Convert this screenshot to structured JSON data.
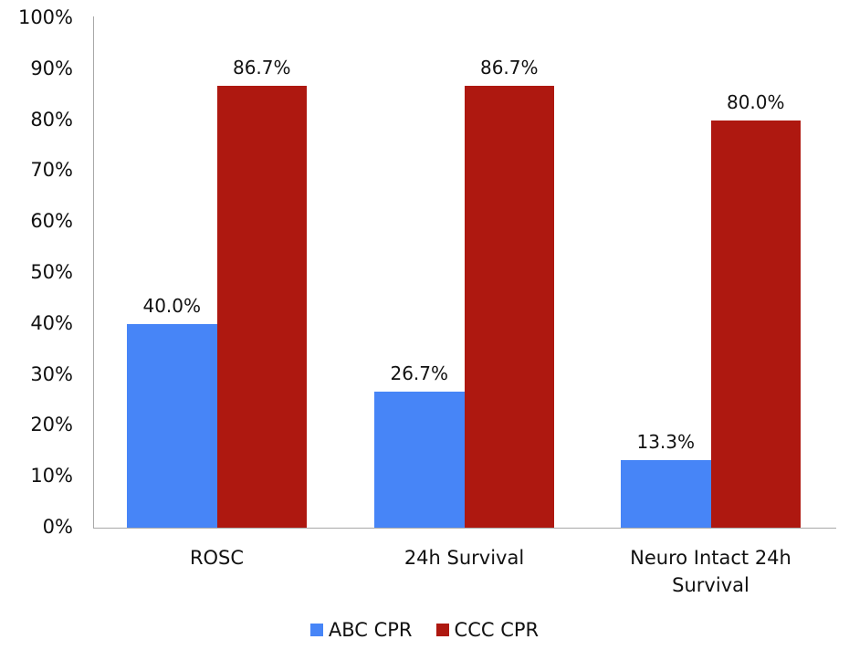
{
  "chart_data": {
    "type": "bar",
    "title": "",
    "xlabel": "",
    "ylabel": "",
    "ylim": [
      0,
      100
    ],
    "yticks": [
      "0%",
      "10%",
      "20%",
      "30%",
      "40%",
      "50%",
      "60%",
      "70%",
      "80%",
      "90%",
      "100%"
    ],
    "categories": [
      "ROSC",
      "24h Survival",
      "Neuro Intact 24h Survival"
    ],
    "series": [
      {
        "name": "ABC CPR",
        "color": "#4785f7",
        "values": [
          40.0,
          26.7,
          13.3
        ],
        "labels": [
          "40.0%",
          "26.7%",
          "13.3%"
        ]
      },
      {
        "name": "CCC CPR",
        "color": "#ae1810",
        "values": [
          86.7,
          86.7,
          80.0
        ],
        "labels": [
          "86.7%",
          "86.7%",
          "80.0%"
        ]
      }
    ],
    "grid": false,
    "legend_position": "bottom"
  }
}
